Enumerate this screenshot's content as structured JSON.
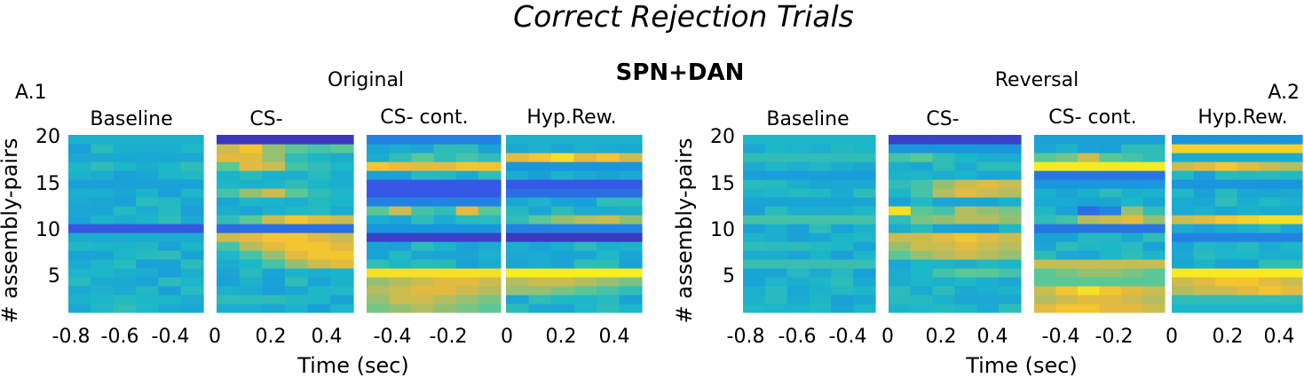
{
  "figure": {
    "suptitle": "Correct Rejection Trials",
    "center_title": "SPN+DAN"
  },
  "chart_data": [
    {
      "type": "heatmap",
      "panel_label": "A.1",
      "condition_title": "Original",
      "ylabel": "# assembly-pairs",
      "xlabel": "Time (sec)",
      "ylim": [
        1,
        20
      ],
      "yticks": [
        5,
        10,
        15,
        20
      ],
      "colormap": "parula",
      "segments": [
        {
          "title": "Baseline",
          "xticks": [
            "-0.8",
            "-0.6",
            "-0.4"
          ]
        },
        {
          "title": "CS-",
          "xticks": [
            "0",
            "0.2",
            "0.4"
          ]
        },
        {
          "title": "CS- cont.",
          "xticks": [
            "-0.4",
            "-0.2"
          ]
        },
        {
          "title": "Hyp.Rew.",
          "xticks": [
            "0",
            "0.2",
            "0.4"
          ]
        }
      ]
    },
    {
      "type": "heatmap",
      "panel_label": "A.2",
      "condition_title": "Reversal",
      "ylabel": "# assembly-pairs",
      "xlabel": "Time (sec)",
      "ylim": [
        1,
        20
      ],
      "yticks": [
        5,
        10,
        15,
        20
      ],
      "colormap": "parula",
      "segments": [
        {
          "title": "Baseline",
          "xticks": [
            "-0.8",
            "-0.6",
            "-0.4"
          ]
        },
        {
          "title": "CS-",
          "xticks": [
            "0",
            "0.2",
            "0.4"
          ]
        },
        {
          "title": "CS- cont.",
          "xticks": [
            "-0.4",
            "-0.2"
          ]
        },
        {
          "title": "Hyp.Rew.",
          "xticks": [
            "0",
            "0.2",
            "0.4"
          ]
        }
      ]
    }
  ]
}
